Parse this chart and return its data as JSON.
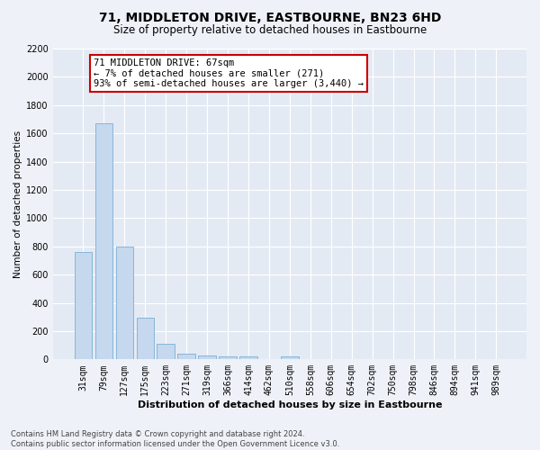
{
  "title": "71, MIDDLETON DRIVE, EASTBOURNE, BN23 6HD",
  "subtitle": "Size of property relative to detached houses in Eastbourne",
  "xlabel": "Distribution of detached houses by size in Eastbourne",
  "ylabel": "Number of detached properties",
  "categories": [
    "31sqm",
    "79sqm",
    "127sqm",
    "175sqm",
    "223sqm",
    "271sqm",
    "319sqm",
    "366sqm",
    "414sqm",
    "462sqm",
    "510sqm",
    "558sqm",
    "606sqm",
    "654sqm",
    "702sqm",
    "750sqm",
    "798sqm",
    "846sqm",
    "894sqm",
    "941sqm",
    "989sqm"
  ],
  "values": [
    760,
    1670,
    800,
    295,
    110,
    38,
    28,
    20,
    20,
    0,
    20,
    0,
    0,
    0,
    0,
    0,
    0,
    0,
    0,
    0,
    0
  ],
  "bar_color": "#c5d8ee",
  "bar_edge_color": "#7aafd4",
  "annotation_text": "71 MIDDLETON DRIVE: 67sqm\n← 7% of detached houses are smaller (271)\n93% of semi-detached houses are larger (3,440) →",
  "annotation_box_color": "#ffffff",
  "annotation_box_edge": "#cc0000",
  "ylim": [
    0,
    2200
  ],
  "yticks": [
    0,
    200,
    400,
    600,
    800,
    1000,
    1200,
    1400,
    1600,
    1800,
    2000,
    2200
  ],
  "footnote": "Contains HM Land Registry data © Crown copyright and database right 2024.\nContains public sector information licensed under the Open Government Licence v3.0.",
  "background_color": "#eef2f8",
  "plot_bg_color": "#e4eaf4",
  "grid_color": "#ffffff",
  "title_fontsize": 10,
  "subtitle_fontsize": 8.5,
  "ylabel_fontsize": 7.5,
  "xlabel_fontsize": 8,
  "tick_fontsize": 7,
  "annotation_fontsize": 7.5,
  "footnote_fontsize": 6
}
